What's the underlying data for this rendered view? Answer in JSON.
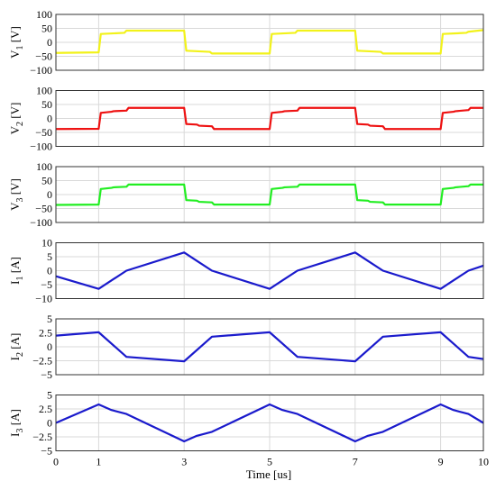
{
  "chart_data": [
    {
      "type": "line",
      "ylabel": "V1 [V]",
      "ylabel_main": "V",
      "ylabel_sub": "1",
      "ylabel_unit": "[V]",
      "color": "#f2f21a",
      "ylim": [
        -100,
        100
      ],
      "yticks": [
        {
          "v": 100,
          "label": "100"
        },
        {
          "v": 50,
          "label": "50"
        },
        {
          "v": 0,
          "label": "0"
        },
        {
          "v": -50,
          "label": "−50"
        },
        {
          "v": -100,
          "label": "−100"
        }
      ],
      "series": [
        {
          "x": [
            0,
            1,
            1.05,
            1.6,
            1.65,
            3,
            3.05,
            3.6,
            3.65,
            5,
            5.05,
            5.6,
            5.65,
            7,
            7.05,
            7.6,
            7.65,
            9,
            9.05,
            9.6,
            9.65,
            10
          ],
          "y": [
            -38,
            -36,
            30,
            34,
            42,
            42,
            -30,
            -34,
            -40,
            -40,
            30,
            34,
            42,
            42,
            -30,
            -34,
            -40,
            -40,
            30,
            34,
            38,
            44
          ]
        }
      ]
    },
    {
      "type": "line",
      "ylabel": "V2 [V]",
      "ylabel_main": "V",
      "ylabel_sub": "2",
      "ylabel_unit": "[V]",
      "color": "#ee1111",
      "ylim": [
        -100,
        100
      ],
      "yticks": [
        {
          "v": 100,
          "label": "100"
        },
        {
          "v": 50,
          "label": "50"
        },
        {
          "v": 0,
          "label": "0"
        },
        {
          "v": -50,
          "label": "−50"
        },
        {
          "v": -100,
          "label": "−100"
        }
      ],
      "series": [
        {
          "x": [
            0,
            1,
            1.05,
            1.3,
            1.35,
            1.65,
            1.7,
            3,
            3.05,
            3.3,
            3.35,
            3.65,
            3.7,
            5,
            5.05,
            5.3,
            5.35,
            5.65,
            5.7,
            7,
            7.05,
            7.3,
            7.35,
            7.65,
            7.7,
            9,
            9.05,
            9.3,
            9.35,
            9.65,
            9.7,
            10
          ],
          "y": [
            -38,
            -37,
            20,
            24,
            26,
            28,
            38,
            38,
            -20,
            -22,
            -26,
            -28,
            -38,
            -38,
            20,
            24,
            26,
            28,
            38,
            38,
            -20,
            -22,
            -26,
            -28,
            -38,
            -38,
            20,
            24,
            26,
            30,
            38,
            38
          ]
        }
      ]
    },
    {
      "type": "line",
      "ylabel": "V3 [V]",
      "ylabel_main": "V",
      "ylabel_sub": "3",
      "ylabel_unit": "[V]",
      "color": "#22ee22",
      "ylim": [
        -100,
        100
      ],
      "yticks": [
        {
          "v": 100,
          "label": "100"
        },
        {
          "v": 50,
          "label": "50"
        },
        {
          "v": 0,
          "label": "0"
        },
        {
          "v": -50,
          "label": "−50"
        },
        {
          "v": -100,
          "label": "−100"
        }
      ],
      "series": [
        {
          "x": [
            0,
            1,
            1.05,
            1.3,
            1.35,
            1.65,
            1.7,
            3,
            3.05,
            3.3,
            3.35,
            3.65,
            3.7,
            5,
            5.05,
            5.3,
            5.35,
            5.65,
            5.7,
            7,
            7.05,
            7.3,
            7.35,
            7.65,
            7.7,
            9,
            9.05,
            9.3,
            9.35,
            9.65,
            9.7,
            10
          ],
          "y": [
            -37,
            -36,
            20,
            24,
            26,
            28,
            36,
            36,
            -20,
            -22,
            -26,
            -28,
            -36,
            -36,
            20,
            24,
            26,
            28,
            36,
            36,
            -20,
            -22,
            -26,
            -28,
            -36,
            -36,
            20,
            24,
            26,
            30,
            36,
            36
          ]
        }
      ]
    },
    {
      "type": "line",
      "ylabel": "I1 [A]",
      "ylabel_main": "I",
      "ylabel_sub": "1",
      "ylabel_unit": "[A]",
      "color": "#1a1acc",
      "ylim": [
        -10,
        10
      ],
      "yticks": [
        {
          "v": 10,
          "label": "10"
        },
        {
          "v": 5,
          "label": "5"
        },
        {
          "v": 0,
          "label": "0"
        },
        {
          "v": -5,
          "label": "−5"
        },
        {
          "v": -10,
          "label": "−10"
        }
      ],
      "series": [
        {
          "x": [
            0,
            1,
            1.3,
            1.65,
            3,
            3.3,
            3.65,
            5,
            5.3,
            5.65,
            7,
            7.3,
            7.65,
            9,
            9.3,
            9.65,
            10
          ],
          "y": [
            -2,
            -6.5,
            -3.5,
            0,
            6.5,
            3.5,
            0,
            -6.5,
            -3.5,
            0,
            6.5,
            3.5,
            0,
            -6.5,
            -3.5,
            0,
            1.8
          ]
        }
      ]
    },
    {
      "type": "line",
      "ylabel": "I2 [A]",
      "ylabel_main": "I",
      "ylabel_sub": "2",
      "ylabel_unit": "[A]",
      "color": "#1a1acc",
      "ylim": [
        -5,
        5
      ],
      "yticks": [
        {
          "v": 5,
          "label": "5"
        },
        {
          "v": 2.5,
          "label": "2.5"
        },
        {
          "v": 0,
          "label": "0"
        },
        {
          "v": -2.5,
          "label": "−2.5"
        },
        {
          "v": -5,
          "label": "−5"
        }
      ],
      "series": [
        {
          "x": [
            0,
            1,
            1.65,
            3,
            3.65,
            5,
            5.65,
            7,
            7.65,
            9,
            9.65,
            10
          ],
          "y": [
            2,
            2.6,
            -1.8,
            -2.6,
            1.8,
            2.6,
            -1.8,
            -2.6,
            1.8,
            2.6,
            -1.8,
            -2.2
          ]
        }
      ]
    },
    {
      "type": "line",
      "ylabel": "I3 [A]",
      "ylabel_main": "I",
      "ylabel_sub": "3",
      "ylabel_unit": "[A]",
      "color": "#1a1acc",
      "ylim": [
        -5,
        5
      ],
      "yticks": [
        {
          "v": 5,
          "label": "5"
        },
        {
          "v": 2.5,
          "label": "2.5"
        },
        {
          "v": 0,
          "label": "0"
        },
        {
          "v": -2.5,
          "label": "−2.5"
        },
        {
          "v": -5,
          "label": "−5"
        }
      ],
      "series": [
        {
          "x": [
            0,
            1,
            1.3,
            1.65,
            3,
            3.3,
            3.65,
            5,
            5.3,
            5.65,
            7,
            7.3,
            7.65,
            9,
            9.3,
            9.65,
            10
          ],
          "y": [
            0,
            3.3,
            2.3,
            1.6,
            -3.3,
            -2.3,
            -1.6,
            3.3,
            2.3,
            1.6,
            -3.3,
            -2.3,
            -1.6,
            3.3,
            2.3,
            1.6,
            0
          ]
        }
      ]
    }
  ],
  "xaxis": {
    "label": "Time [us]",
    "xlim": [
      0,
      10
    ],
    "ticks": [
      0,
      1,
      3,
      5,
      7,
      9,
      10
    ],
    "tick_labels": [
      "0",
      "1",
      "3",
      "5",
      "7",
      "9",
      "10"
    ]
  },
  "grid": true
}
